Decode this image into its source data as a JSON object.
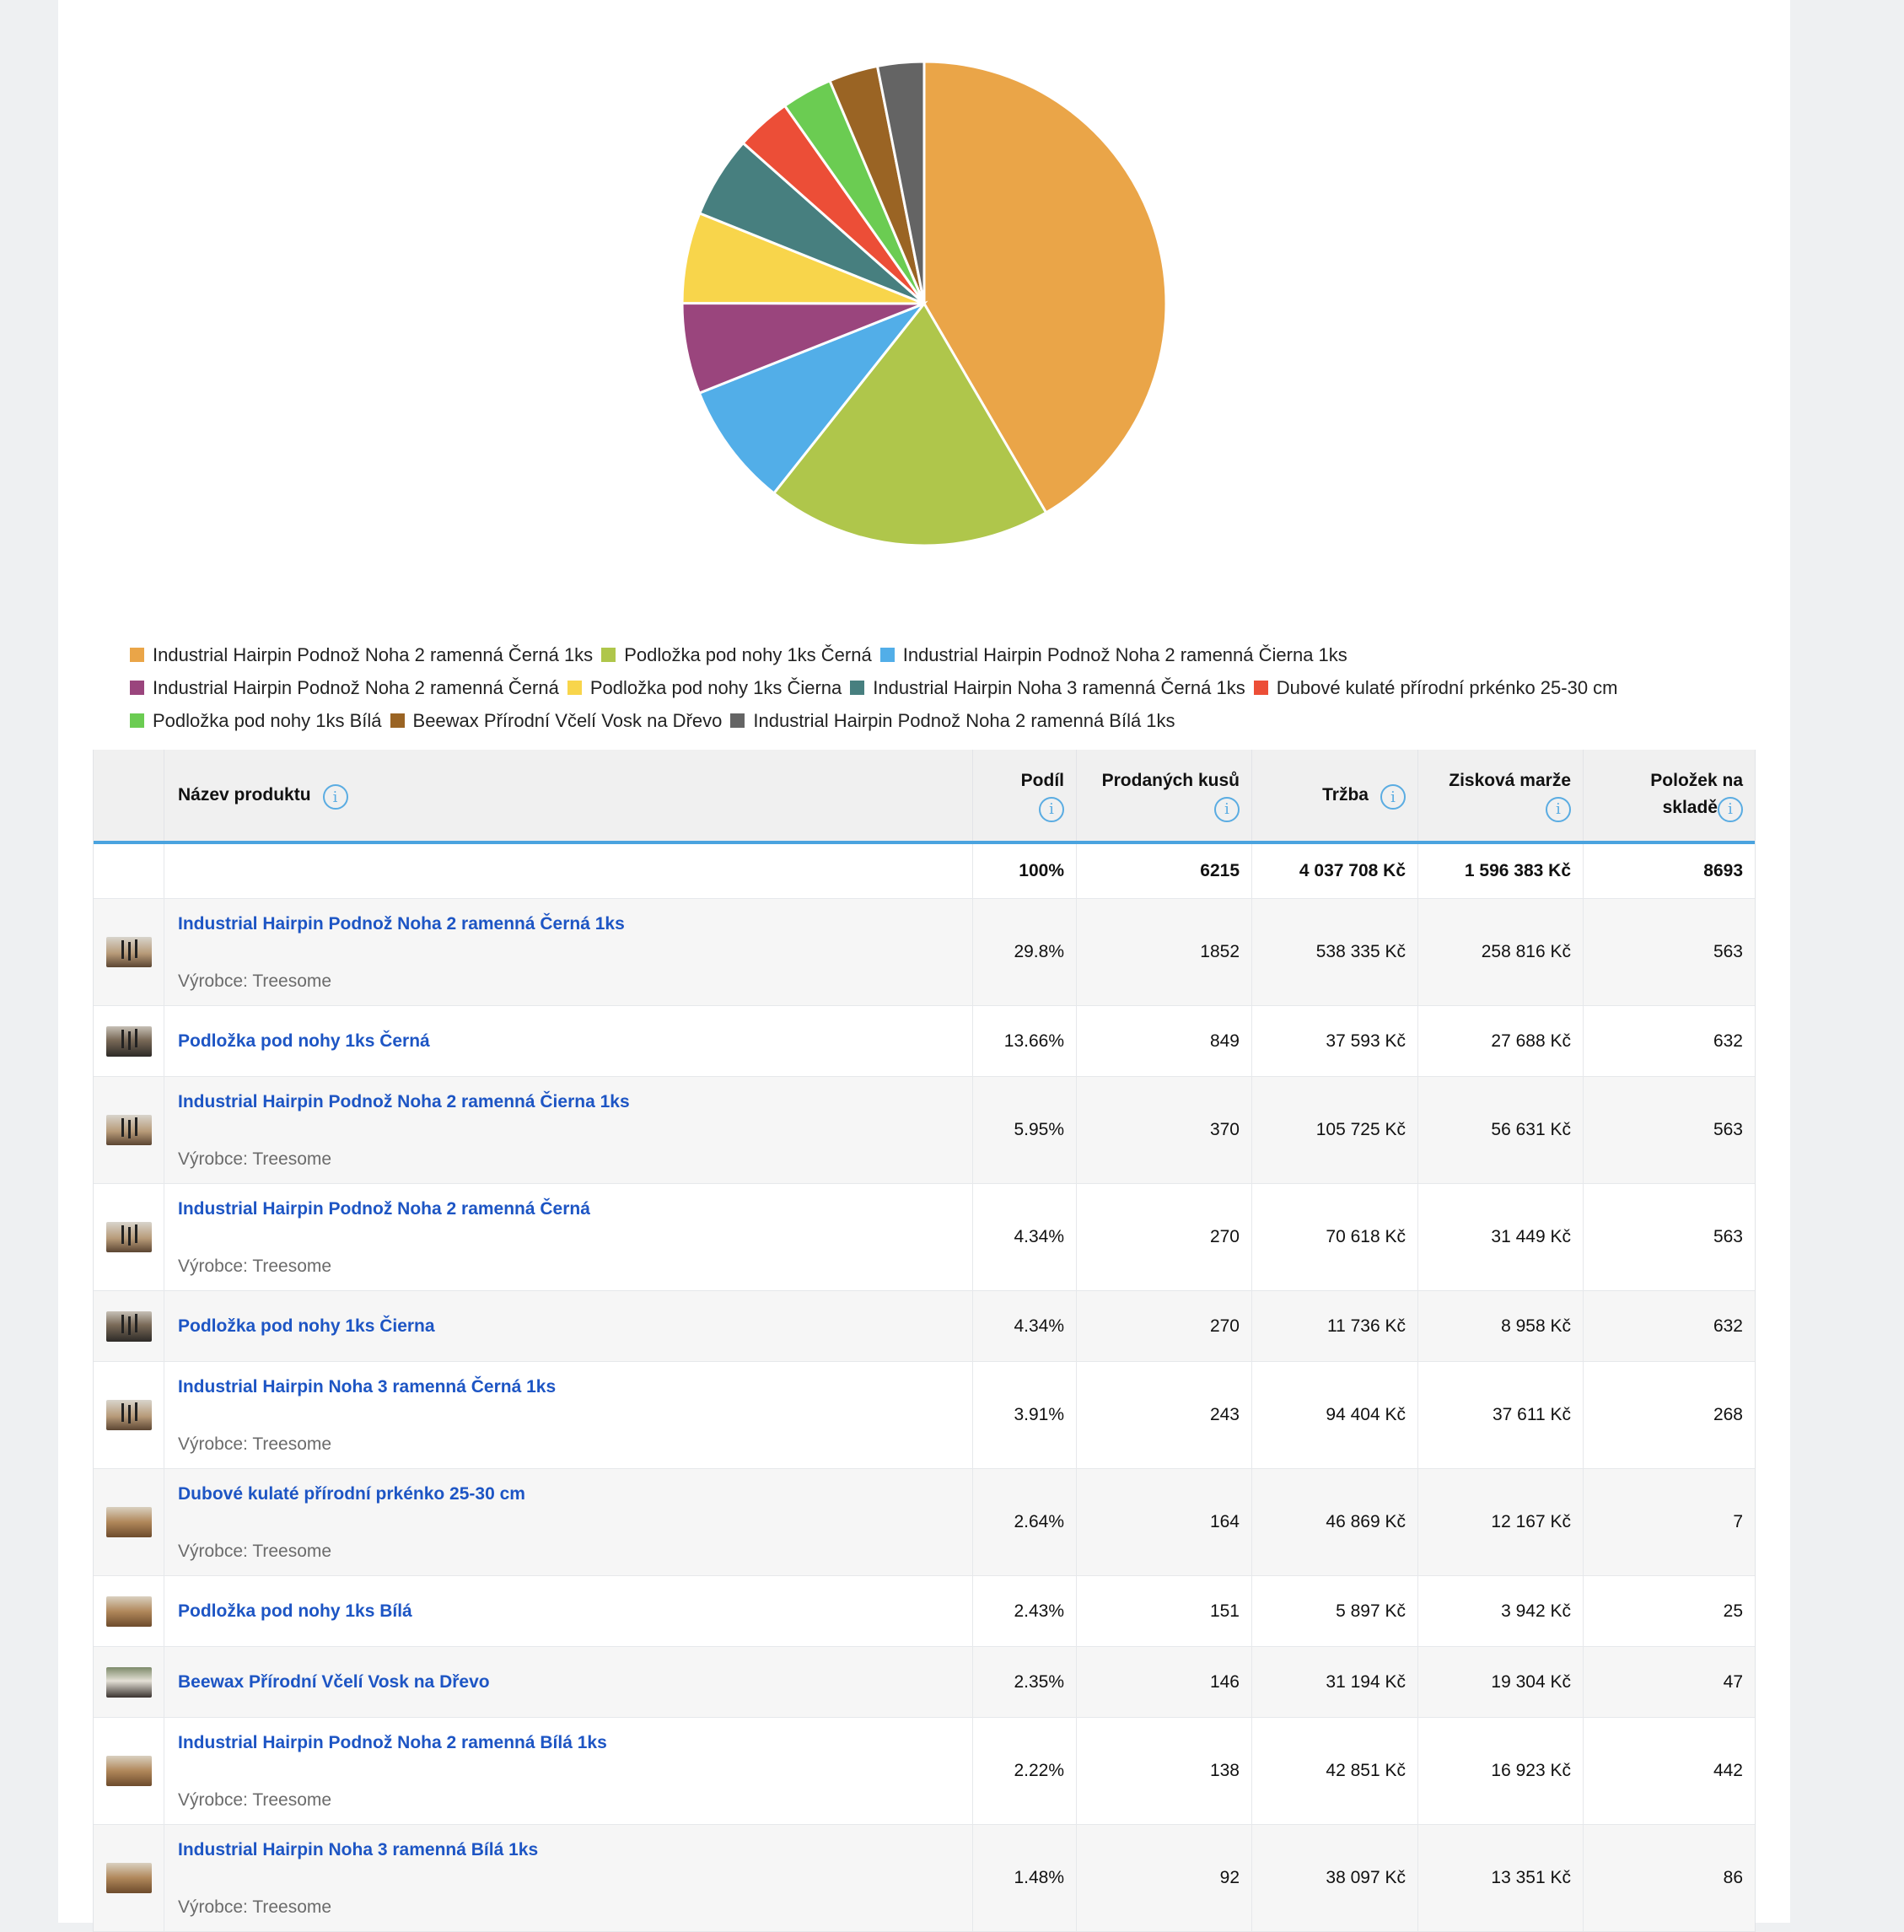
{
  "chart_data": {
    "type": "pie",
    "slices": [
      {
        "label": "Industrial Hairpin Podnož Noha 2 ramenná Černá 1ks",
        "value": 29.8,
        "color": "#eaa548"
      },
      {
        "label": "Podložka pod nohy 1ks Černá",
        "value": 13.66,
        "color": "#afc64b"
      },
      {
        "label": "Industrial Hairpin Podnož Noha 2 ramenná Čierna 1ks",
        "value": 5.95,
        "color": "#52aee8"
      },
      {
        "label": "Industrial Hairpin Podnož Noha 2 ramenná Černá",
        "value": 4.34,
        "color": "#9a457d"
      },
      {
        "label": "Podložka pod nohy 1ks Čierna",
        "value": 4.34,
        "color": "#f8d54b"
      },
      {
        "label": "Industrial Hairpin Noha 3 ramenná Černá 1ks",
        "value": 3.91,
        "color": "#477f7f"
      },
      {
        "label": "Dubové kulaté přírodní prkénko 25-30 cm",
        "value": 2.64,
        "color": "#ec4e37"
      },
      {
        "label": "Podložka pod nohy 1ks Bílá",
        "value": 2.43,
        "color": "#6bcc52"
      },
      {
        "label": "Beewax Přírodní Včelí Vosk na Dřevo",
        "value": 2.35,
        "color": "#9a6424"
      },
      {
        "label": "Industrial Hairpin Podnož Noha 2 ramenná Bílá 1ks",
        "value": 2.22,
        "color": "#646464"
      }
    ]
  },
  "table": {
    "headers": {
      "name": "Název produktu",
      "share": "Podíl",
      "sold": "Prodaných kusů",
      "revenue": "Tržba",
      "margin": "Zisková marže",
      "stock_line1": "Položek na",
      "stock_line2": "skladě"
    },
    "totals": {
      "share": "100%",
      "sold": "6215",
      "revenue": "4 037 708 Kč",
      "margin": "1 596 383 Kč",
      "stock": "8693"
    },
    "maker_label": "Výrobce: Treesome",
    "rows": [
      {
        "name": "Industrial Hairpin Podnož Noha 2 ramenná Černá 1ks",
        "maker": "Výrobce: Treesome",
        "share": "29.8%",
        "sold": "1852",
        "revenue": "538 335 Kč",
        "margin": "258 816 Kč",
        "stock": "563"
      },
      {
        "name": "Podložka pod nohy 1ks Černá",
        "maker": "",
        "share": "13.66%",
        "sold": "849",
        "revenue": "37 593 Kč",
        "margin": "27 688 Kč",
        "stock": "632"
      },
      {
        "name": "Industrial Hairpin Podnož Noha 2 ramenná Čierna 1ks",
        "maker": "Výrobce: Treesome",
        "share": "5.95%",
        "sold": "370",
        "revenue": "105 725 Kč",
        "margin": "56 631 Kč",
        "stock": "563"
      },
      {
        "name": "Industrial Hairpin Podnož Noha 2 ramenná Černá",
        "maker": "Výrobce: Treesome",
        "share": "4.34%",
        "sold": "270",
        "revenue": "70 618 Kč",
        "margin": "31 449 Kč",
        "stock": "563"
      },
      {
        "name": "Podložka pod nohy 1ks Čierna",
        "maker": "",
        "share": "4.34%",
        "sold": "270",
        "revenue": "11 736 Kč",
        "margin": "8 958 Kč",
        "stock": "632"
      },
      {
        "name": "Industrial Hairpin Noha 3 ramenná Černá 1ks",
        "maker": "Výrobce: Treesome",
        "share": "3.91%",
        "sold": "243",
        "revenue": "94 404 Kč",
        "margin": "37 611 Kč",
        "stock": "268"
      },
      {
        "name": "Dubové kulaté přírodní prkénko 25-30 cm",
        "maker": "Výrobce: Treesome",
        "share": "2.64%",
        "sold": "164",
        "revenue": "46 869 Kč",
        "margin": "12 167 Kč",
        "stock": "7"
      },
      {
        "name": "Podložka pod nohy 1ks Bílá",
        "maker": "",
        "share": "2.43%",
        "sold": "151",
        "revenue": "5 897 Kč",
        "margin": "3 942 Kč",
        "stock": "25"
      },
      {
        "name": "Beewax Přírodní Včelí Vosk na Dřevo",
        "maker": "",
        "share": "2.35%",
        "sold": "146",
        "revenue": "31 194 Kč",
        "margin": "19 304 Kč",
        "stock": "47"
      },
      {
        "name": "Industrial Hairpin Podnož Noha 2 ramenná Bílá 1ks",
        "maker": "Výrobce: Treesome",
        "share": "2.22%",
        "sold": "138",
        "revenue": "42 851 Kč",
        "margin": "16 923 Kč",
        "stock": "442"
      },
      {
        "name": "Industrial Hairpin Noha 3 ramenná Bílá 1ks",
        "maker": "Výrobce: Treesome",
        "share": "1.48%",
        "sold": "92",
        "revenue": "38 097 Kč",
        "margin": "13 351 Kč",
        "stock": "86"
      }
    ]
  },
  "icons": {
    "info": "info-icon",
    "info_glyph": "i"
  }
}
